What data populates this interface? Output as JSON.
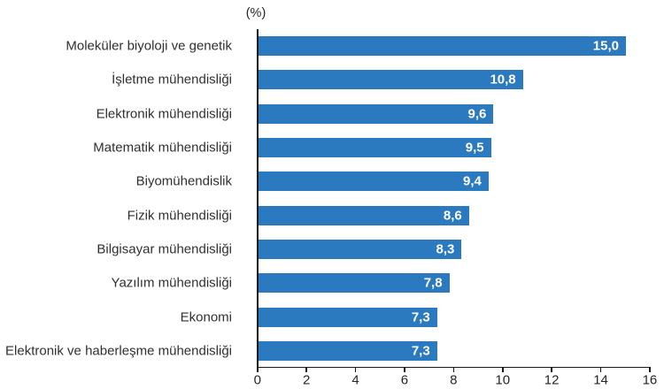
{
  "chart_data": {
    "type": "bar",
    "orientation": "horizontal",
    "title": "",
    "unit_label": "(%)",
    "xlabel": "",
    "ylabel": "",
    "categories": [
      "Moleküler biyoloji ve genetik",
      "İşletme mühendisliği",
      "Elektronik mühendisliği",
      "Matematik mühendisliği",
      "Biyomühendislik",
      "Fizik mühendisliği",
      "Bilgisayar mühendisliği",
      "Yazılım mühendisliği",
      "Ekonomi",
      "Elektronik ve haberleşme mühendisliği"
    ],
    "values": [
      15.0,
      10.8,
      9.6,
      9.5,
      9.4,
      8.6,
      8.3,
      7.8,
      7.3,
      7.3
    ],
    "value_labels": [
      "15,0",
      "10,8",
      "9,6",
      "9,5",
      "9,4",
      "8,6",
      "8,3",
      "7,8",
      "7,3",
      "7,3"
    ],
    "xlim": [
      0,
      16
    ],
    "x_tick_labels": [
      "0",
      "2",
      "4",
      "6",
      "8",
      "10",
      "12",
      "14",
      "16"
    ],
    "x_tick_values": [
      0,
      2,
      4,
      6,
      8,
      10,
      12,
      14,
      16
    ],
    "grid": false,
    "legend": null,
    "colors": {
      "bar": "#2b7abf",
      "axis": "#1a1a1a",
      "category_label": "#303030",
      "tick_label": "#262626",
      "value_label": "#ffffff",
      "background": "#ffffff"
    }
  }
}
